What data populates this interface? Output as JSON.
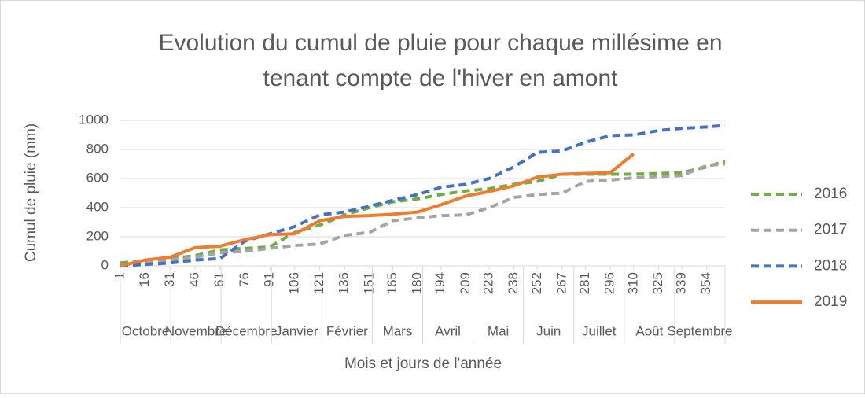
{
  "chart_data": {
    "type": "line",
    "title": "Evolution du cumul de pluie pour chaque millésime en tenant compte de l'hiver en amont",
    "title_lines": [
      "Evolution du cumul de pluie pour chaque millésime en",
      "tenant compte de l'hiver en amont"
    ],
    "y_label": "Cumul de pluie (mm)",
    "x_label": "Mois et jours de l'année",
    "x": [
      1,
      16,
      31,
      46,
      61,
      76,
      91,
      106,
      121,
      136,
      151,
      165,
      180,
      194,
      209,
      223,
      238,
      252,
      267,
      281,
      296,
      310,
      325,
      339,
      354,
      365
    ],
    "xlim": [
      1,
      365
    ],
    "xticks": [
      1,
      16,
      31,
      46,
      61,
      76,
      91,
      106,
      121,
      136,
      151,
      165,
      180,
      194,
      209,
      223,
      238,
      252,
      267,
      281,
      296,
      310,
      325,
      339,
      354
    ],
    "months": [
      "Octobre",
      "Novembre",
      "Décembre",
      "Janvier",
      "Février",
      "Mars",
      "Avril",
      "Mai",
      "Juin",
      "Juillet",
      "Août",
      "Septembre"
    ],
    "ylim": [
      0,
      1000
    ],
    "yticks": [
      0,
      200,
      400,
      600,
      800,
      1000
    ],
    "grid": true,
    "legend": "right",
    "series": [
      {
        "name": "2016",
        "color": "#70ad47",
        "dashed": true,
        "values": [
          20,
          35,
          50,
          70,
          110,
          120,
          130,
          230,
          280,
          350,
          400,
          440,
          460,
          490,
          515,
          530,
          560,
          580,
          630,
          630,
          630,
          630,
          635,
          640,
          680,
          720
        ]
      },
      {
        "name": "2017",
        "color": "#a5a5a5",
        "dashed": true,
        "values": [
          5,
          20,
          40,
          60,
          90,
          100,
          120,
          140,
          150,
          210,
          230,
          310,
          330,
          345,
          350,
          400,
          470,
          490,
          500,
          580,
          590,
          605,
          615,
          620,
          690,
          700
        ]
      },
      {
        "name": "2018",
        "color": "#4472c4",
        "dashed": true,
        "values": [
          0,
          10,
          20,
          40,
          50,
          170,
          220,
          270,
          350,
          370,
          410,
          450,
          490,
          540,
          560,
          600,
          680,
          780,
          790,
          850,
          895,
          900,
          930,
          945,
          955,
          965
        ]
      },
      {
        "name": "2019",
        "color": "#ed7d31",
        "dashed": false,
        "values": [
          0,
          40,
          60,
          125,
          135,
          180,
          215,
          220,
          310,
          340,
          345,
          355,
          370,
          420,
          480,
          510,
          550,
          610,
          630,
          635,
          640,
          770,
          null,
          null,
          null,
          null
        ]
      }
    ]
  }
}
